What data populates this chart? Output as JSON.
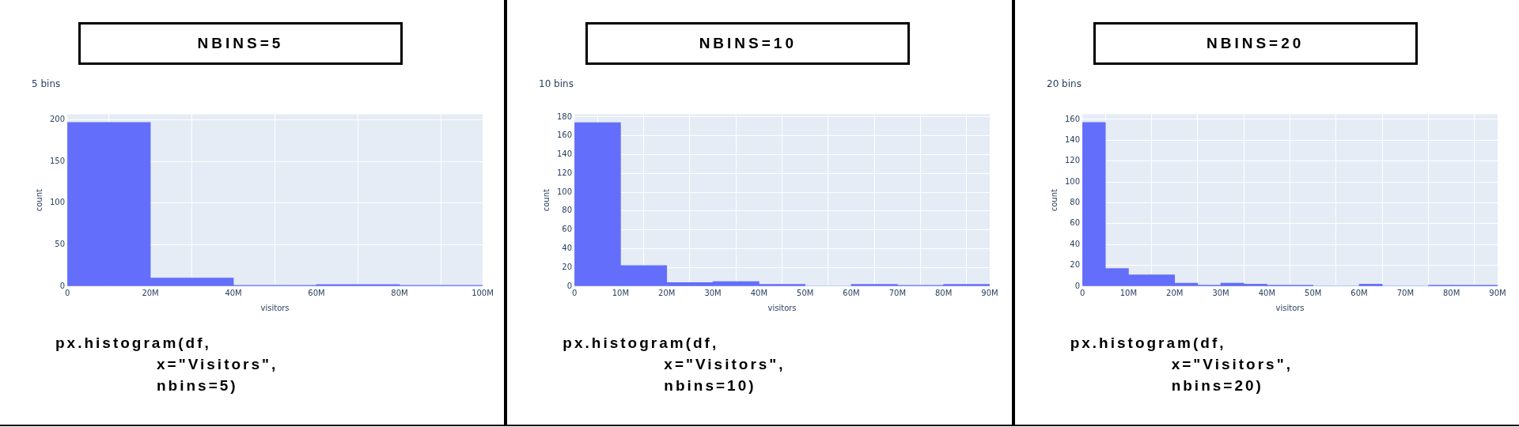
{
  "chart_data": [
    {
      "type": "histogram",
      "title": "NBINS=5",
      "subtitle": "5 bins",
      "xlabel": "visitors",
      "ylabel": "count",
      "color": "#636efa",
      "grid": true,
      "bins": [
        0,
        20000000,
        40000000,
        60000000,
        80000000,
        100000000
      ],
      "values": [
        197,
        10,
        1,
        2,
        1
      ],
      "xlim": [
        0,
        100000000
      ],
      "xticks": [
        {
          "value": 0,
          "label": "0"
        },
        {
          "value": 20000000,
          "label": "20M"
        },
        {
          "value": 40000000,
          "label": "40M"
        },
        {
          "value": 60000000,
          "label": "60M"
        },
        {
          "value": 80000000,
          "label": "80M"
        },
        {
          "value": 100000000,
          "label": "100M"
        }
      ],
      "ylim": [
        0,
        207
      ],
      "yticks": [
        0,
        50,
        100,
        150,
        200
      ],
      "annotations": [
        "px.histogram(df,",
        "x=\"Visitors\",",
        "nbins=5)"
      ]
    },
    {
      "type": "histogram",
      "title": "NBINS=10",
      "subtitle": "10 bins",
      "xlabel": "visitors",
      "ylabel": "count",
      "color": "#636efa",
      "grid": true,
      "bins": [
        0,
        10000000,
        20000000,
        30000000,
        40000000,
        50000000,
        60000000,
        70000000,
        80000000,
        90000000
      ],
      "values": [
        174,
        22,
        4,
        5,
        2,
        0,
        2,
        1,
        2
      ],
      "xlim": [
        0,
        90000000
      ],
      "xticks": [
        {
          "value": 0,
          "label": "0"
        },
        {
          "value": 10000000,
          "label": "10M"
        },
        {
          "value": 20000000,
          "label": "20M"
        },
        {
          "value": 30000000,
          "label": "30M"
        },
        {
          "value": 40000000,
          "label": "40M"
        },
        {
          "value": 50000000,
          "label": "50M"
        },
        {
          "value": 60000000,
          "label": "60M"
        },
        {
          "value": 70000000,
          "label": "70M"
        },
        {
          "value": 80000000,
          "label": "80M"
        },
        {
          "value": 90000000,
          "label": "90M"
        }
      ],
      "ylim": [
        0,
        183
      ],
      "yticks": [
        0,
        20,
        40,
        60,
        80,
        100,
        120,
        140,
        160,
        180
      ],
      "annotations": [
        "px.histogram(df,",
        "x=\"Visitors\",",
        "nbins=10)"
      ]
    },
    {
      "type": "histogram",
      "title": "NBINS=20",
      "subtitle": "20 bins",
      "xlabel": "visitors",
      "ylabel": "count",
      "color": "#636efa",
      "grid": true,
      "bins": [
        0,
        5000000,
        10000000,
        15000000,
        20000000,
        25000000,
        30000000,
        35000000,
        40000000,
        45000000,
        50000000,
        55000000,
        60000000,
        65000000,
        70000000,
        75000000,
        80000000,
        85000000,
        90000000
      ],
      "values": [
        157,
        17,
        11,
        11,
        3,
        1,
        3,
        2,
        1,
        1,
        0,
        0,
        2,
        0,
        0,
        1,
        1,
        1
      ],
      "xlim": [
        0,
        90000000
      ],
      "xticks": [
        {
          "value": 0,
          "label": "0"
        },
        {
          "value": 10000000,
          "label": "10M"
        },
        {
          "value": 20000000,
          "label": "20M"
        },
        {
          "value": 30000000,
          "label": "30M"
        },
        {
          "value": 40000000,
          "label": "40M"
        },
        {
          "value": 50000000,
          "label": "50M"
        },
        {
          "value": 60000000,
          "label": "60M"
        },
        {
          "value": 70000000,
          "label": "70M"
        },
        {
          "value": 80000000,
          "label": "80M"
        },
        {
          "value": 90000000,
          "label": "90M"
        }
      ],
      "ylim": [
        0,
        165
      ],
      "yticks": [
        0,
        20,
        40,
        60,
        80,
        100,
        120,
        140,
        160
      ],
      "annotations": [
        "px.histogram(df,",
        "x=\"Visitors\",",
        "nbins=20)"
      ]
    }
  ]
}
